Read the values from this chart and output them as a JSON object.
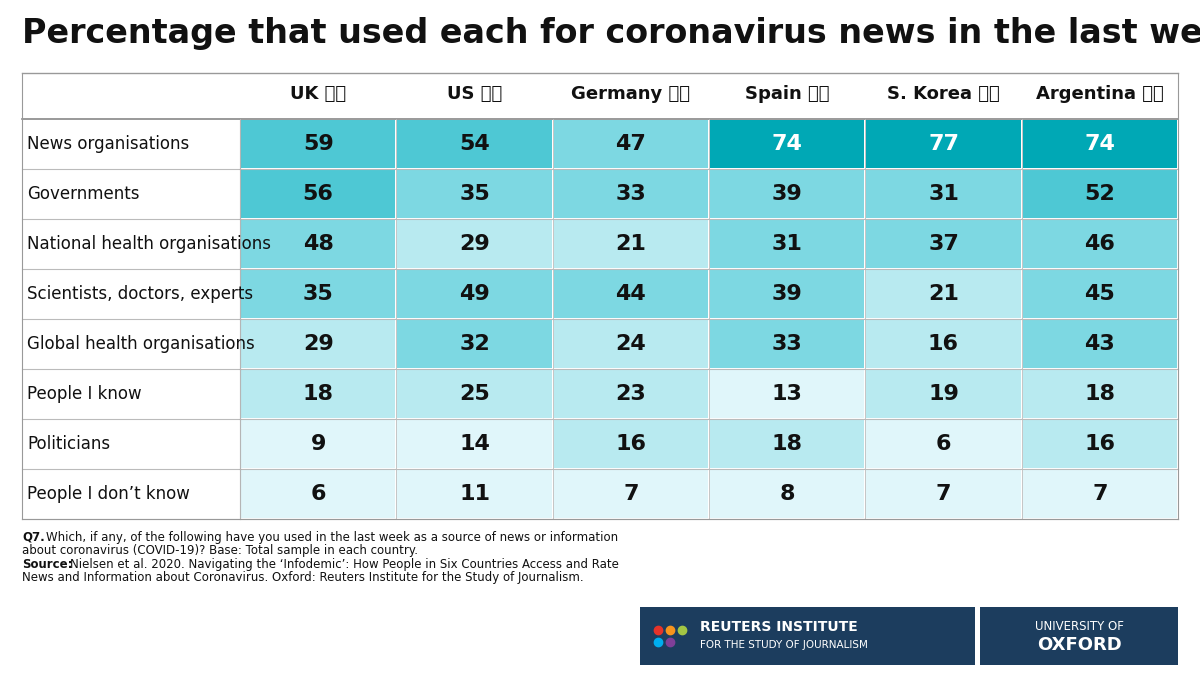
{
  "title": "Percentage that used each for coronavirus news in the last week",
  "columns": [
    "UK",
    "US",
    "Germany",
    "Spain",
    "S. Korea",
    "Argentina"
  ],
  "col_flags": [
    "🇬🇧",
    "🇺🇸",
    "🇩🇪",
    "🇪🇸",
    "🇰🇷",
    "🇦🇷"
  ],
  "rows": [
    "News organisations",
    "Governments",
    "National health organisations",
    "Scientists, doctors, experts",
    "Global health organisations",
    "People I know",
    "Politicians",
    "People I don’t know"
  ],
  "data": [
    [
      59,
      54,
      47,
      74,
      77,
      74
    ],
    [
      56,
      35,
      33,
      39,
      31,
      52
    ],
    [
      48,
      29,
      21,
      31,
      37,
      46
    ],
    [
      35,
      49,
      44,
      39,
      21,
      45
    ],
    [
      29,
      32,
      24,
      33,
      16,
      43
    ],
    [
      18,
      25,
      23,
      13,
      19,
      18
    ],
    [
      9,
      14,
      16,
      18,
      6,
      16
    ],
    [
      6,
      11,
      7,
      8,
      7,
      7
    ]
  ],
  "color_thresholds": [
    {
      "min": 70,
      "max": 999,
      "color": "#00a8b5"
    },
    {
      "min": 50,
      "max": 70,
      "color": "#4ec8d4"
    },
    {
      "min": 30,
      "max": 50,
      "color": "#7dd8e2"
    },
    {
      "min": 15,
      "max": 30,
      "color": "#b8eaf0"
    },
    {
      "min": 0,
      "max": 15,
      "color": "#e0f6fa"
    }
  ],
  "white_text_min": 70,
  "bg_color": "#ffffff",
  "title_fontsize": 24,
  "header_fontsize": 13,
  "row_label_fontsize": 12,
  "cell_fontsize": 16,
  "q7_text_line1": "Q7. Which, if any, of the following have you used in the last week as a source of news or information",
  "q7_text_line2": "about coronavirus (COVID-19)? Base: Total sample in each country.",
  "source_label": "Source:",
  "source_text_line1": " Nielsen et al. 2020. Navigating the ‘Infodemic’: How People in Six Countries Access and Rate",
  "source_text_line2": "News and Information about Coronavirus. Oxford: Reuters Institute for the Study of Journalism.",
  "ri_text1": "REUTERS INSTITUTE",
  "ri_text2": "FOR THE STUDY OF JOURNALISM",
  "ox_text1": "UNIVERSITY OF",
  "ox_text2": "OXFORD",
  "logo_bg": "#1c3d5e",
  "logo_text_color": "#ffffff"
}
